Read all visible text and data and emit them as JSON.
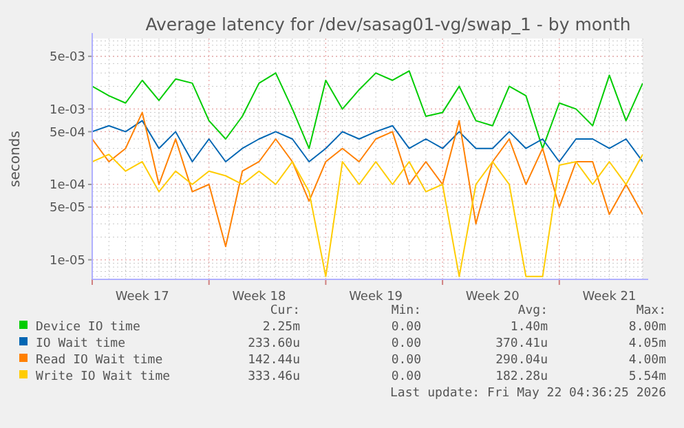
{
  "chart_data": {
    "type": "line",
    "title": "Average latency for /dev/sasag01-vg/swap_1 - by month",
    "ylabel": "seconds",
    "log": "y",
    "grid": true,
    "legend": "bottom",
    "line_style": "solid",
    "xlim": [
      "2026-04-20",
      "2026-05-23"
    ],
    "ylim": [
      5.5e-06,
      0.0086
    ],
    "xticks": [
      {
        "value": "2026-04-20",
        "label": null
      },
      {
        "value": "2026-04-23",
        "label": "Week 17"
      },
      {
        "value": "2026-04-27",
        "label": null
      },
      {
        "value": "2026-04-30",
        "label": "Week 18"
      },
      {
        "value": "2026-05-04",
        "label": null
      },
      {
        "value": "2026-05-07",
        "label": "Week 19"
      },
      {
        "value": "2026-05-11",
        "label": null
      },
      {
        "value": "2026-05-14",
        "label": "Week 20"
      },
      {
        "value": "2026-05-18",
        "label": null
      },
      {
        "value": "2026-05-21",
        "label": "Week 21"
      }
    ],
    "yticks": [
      {
        "value": 1e-05,
        "label": "1e-05"
      },
      {
        "value": 5e-05,
        "label": "5e-05"
      },
      {
        "value": 0.0001,
        "label": "1e-04"
      },
      {
        "value": 0.0005,
        "label": "5e-04"
      },
      {
        "value": 0.001,
        "label": "1e-03"
      },
      {
        "value": 0.005,
        "label": "5e-03"
      }
    ],
    "x": [
      "2026-04-20",
      "2026-04-21",
      "2026-04-22",
      "2026-04-23",
      "2026-04-24",
      "2026-04-25",
      "2026-04-26",
      "2026-04-27",
      "2026-04-28",
      "2026-04-29",
      "2026-04-30",
      "2026-05-01",
      "2026-05-02",
      "2026-05-03",
      "2026-05-04",
      "2026-05-05",
      "2026-05-06",
      "2026-05-07",
      "2026-05-08",
      "2026-05-09",
      "2026-05-10",
      "2026-05-11",
      "2026-05-12",
      "2026-05-13",
      "2026-05-14",
      "2026-05-15",
      "2026-05-16",
      "2026-05-17",
      "2026-05-18",
      "2026-05-19",
      "2026-05-20",
      "2026-05-21",
      "2026-05-22",
      "2026-05-23"
    ],
    "series": [
      {
        "name": "Device IO time",
        "color": "#00cc00",
        "values": [
          0.002,
          0.0015,
          0.0012,
          0.0024,
          0.0013,
          0.0025,
          0.0022,
          0.0007,
          0.0004,
          0.0008,
          0.0022,
          0.003,
          0.001,
          0.0003,
          0.0024,
          0.001,
          0.0018,
          0.003,
          0.0024,
          0.0032,
          0.0008,
          0.0009,
          0.002,
          0.0007,
          0.0006,
          0.002,
          0.0015,
          0.0003,
          0.0012,
          0.001,
          0.0006,
          0.0028,
          0.0007,
          0.0022
        ]
      },
      {
        "name": "IO Wait time",
        "color": "#0066b3",
        "values": [
          0.0005,
          0.0006,
          0.0005,
          0.0007,
          0.0003,
          0.0005,
          0.0002,
          0.0004,
          0.0002,
          0.0003,
          0.0004,
          0.0005,
          0.0004,
          0.0002,
          0.0003,
          0.0005,
          0.0004,
          0.0005,
          0.0006,
          0.0003,
          0.0004,
          0.0003,
          0.0005,
          0.0003,
          0.0003,
          0.0005,
          0.0003,
          0.0004,
          0.0002,
          0.0004,
          0.0004,
          0.0003,
          0.0004,
          0.0002
        ]
      },
      {
        "name": "Read IO Wait time",
        "color": "#ff8000",
        "values": [
          0.0004,
          0.0002,
          0.0003,
          0.0009,
          0.0001,
          0.0004,
          8e-05,
          0.0001,
          1.5e-05,
          0.00015,
          0.0002,
          0.0004,
          0.0002,
          6e-05,
          0.0002,
          0.0003,
          0.0002,
          0.0004,
          0.0005,
          0.0001,
          0.0002,
          0.0001,
          0.0007,
          3e-05,
          0.0002,
          0.0004,
          0.0001,
          0.0003,
          5e-05,
          0.0002,
          0.0002,
          4e-05,
          0.0001,
          4e-05
        ]
      },
      {
        "name": "Write IO Wait time",
        "color": "#ffcc00",
        "values": [
          0.0002,
          0.00025,
          0.00015,
          0.0002,
          8e-05,
          0.00015,
          0.0001,
          0.00015,
          0.00013,
          0.0001,
          0.00015,
          0.0001,
          0.0002,
          8e-05,
          6e-06,
          0.0002,
          0.0001,
          0.0002,
          0.0001,
          0.0002,
          8e-05,
          0.0001,
          6e-06,
          0.0001,
          0.0002,
          0.0001,
          6e-06,
          6e-06,
          0.00018,
          0.0002,
          0.0001,
          0.0002,
          0.0001,
          0.00025
        ]
      }
    ],
    "annotations": [
      "Cur:",
      "Min:",
      "Avg:",
      "Max:",
      "2.25m",
      "0.00",
      "1.40m",
      "8.00m",
      "233.60u",
      "0.00",
      "370.41u",
      "4.05m",
      "142.44u",
      "0.00",
      "290.04u",
      "4.00m",
      "333.46u",
      "0.00",
      "182.28u",
      "5.54m",
      "Last update: Fri May 22 04:36:25 2026"
    ]
  }
}
